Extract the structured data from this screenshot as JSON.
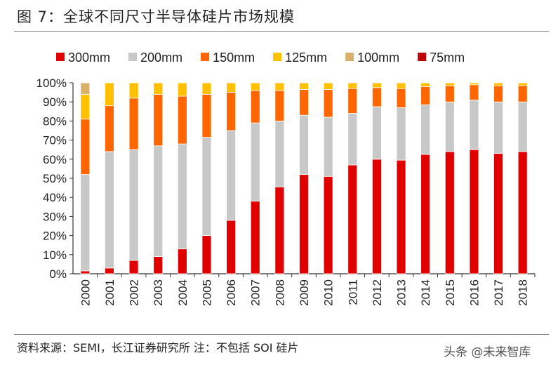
{
  "title": "图 7：全球不同尺寸半导体硅片市场规模",
  "source_note": "资料来源：SEMI，长江证券研究所  注：不包括 SOI 硅片",
  "watermark": "头条 @未来智库",
  "chart_data": {
    "type": "bar",
    "stacked": true,
    "title": "全球不同尺寸半导体硅片市场规模",
    "xlabel": "",
    "ylabel": "",
    "ylim": [
      0,
      100
    ],
    "yticks": [
      "0%",
      "10%",
      "20%",
      "30%",
      "40%",
      "50%",
      "60%",
      "70%",
      "80%",
      "90%",
      "100%"
    ],
    "legend_position": "top",
    "categories": [
      "2000",
      "2001",
      "2002",
      "2003",
      "2004",
      "2005",
      "2006",
      "2007",
      "2008",
      "2009",
      "2010",
      "2011",
      "2012",
      "2013",
      "2014",
      "2015",
      "2016",
      "2017",
      "2018"
    ],
    "series": [
      {
        "name": "300mm",
        "color": "#e00000",
        "values": [
          1.5,
          3,
          7,
          9,
          13,
          20,
          28,
          38,
          45.5,
          52,
          51,
          57,
          60,
          59.5,
          62.5,
          64,
          65,
          63,
          64
        ]
      },
      {
        "name": "200mm",
        "color": "#c8c8c8",
        "values": [
          50.5,
          61,
          58,
          58,
          55,
          51.5,
          47,
          41,
          34.5,
          31,
          31,
          27,
          27.5,
          27.5,
          26,
          26,
          26,
          27,
          26
        ]
      },
      {
        "name": "150mm",
        "color": "#ff6600",
        "values": [
          29,
          24,
          27,
          27,
          25,
          22.5,
          20,
          17,
          16,
          13.5,
          14.5,
          13,
          10,
          10,
          9.5,
          8.5,
          8,
          8.5,
          8.5
        ]
      },
      {
        "name": "125mm",
        "color": "#ffc000",
        "values": [
          13,
          12,
          8,
          6,
          7,
          6,
          5,
          4,
          4,
          3.5,
          3.5,
          3,
          2.5,
          3,
          2,
          1.5,
          1,
          1.5,
          1.5
        ]
      },
      {
        "name": "100mm",
        "color": "#d8b06a",
        "values": [
          6,
          0,
          0,
          0,
          0,
          0,
          0,
          0,
          0,
          0,
          0,
          0,
          0,
          0,
          0,
          0,
          0,
          0,
          0
        ]
      },
      {
        "name": "75mm",
        "color": "#c00000",
        "values": [
          0,
          0,
          0,
          0,
          0,
          0,
          0,
          0,
          0,
          0,
          0,
          0,
          0,
          0,
          0,
          0,
          0,
          0,
          0
        ]
      }
    ]
  }
}
